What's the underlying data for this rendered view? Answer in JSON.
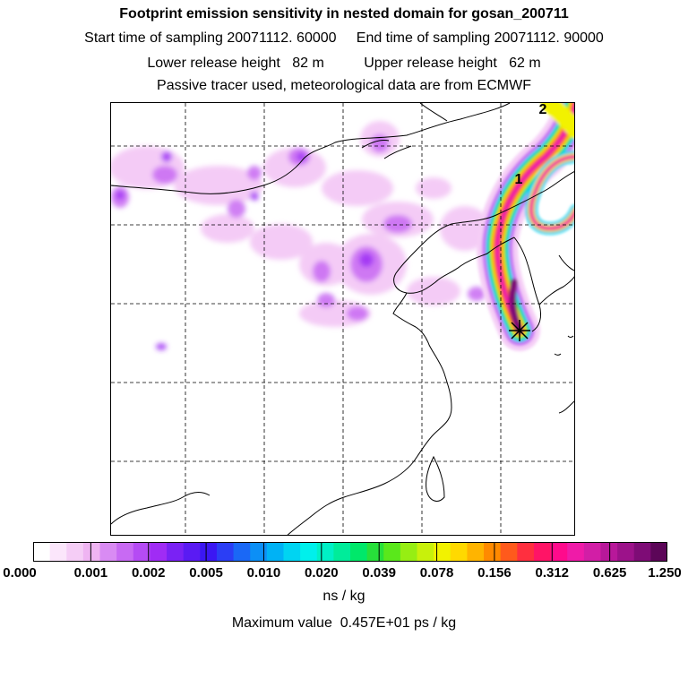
{
  "header": {
    "title": "Footprint emission sensitivity in nested domain for gosan_200711",
    "sampling": "Start time of sampling 20071112. 60000     End time of sampling 20071112. 90000",
    "release": "Lower release height   82 m          Upper release height   62 m",
    "tracer": "Passive tracer used, meteorological data are from ECMWF"
  },
  "map": {
    "trajectory_labels": [
      "1",
      "2"
    ],
    "release_marker": "receptor-star-icon"
  },
  "colorbar": {
    "tick_labels": [
      "0.000",
      "0.001",
      "0.002",
      "0.005",
      "0.010",
      "0.020",
      "0.039",
      "0.078",
      "0.156",
      "0.312",
      "0.625",
      "1.250"
    ],
    "colors": [
      "#ffffff",
      "#fbe6fb",
      "#f5cdf6",
      "#efb4f2",
      "#d98bf3",
      "#c86af3",
      "#b54bf4",
      "#a02cf5",
      "#7a22f4",
      "#5a1bf3",
      "#3b17f3",
      "#2b3ef5",
      "#1a68f6",
      "#0c8ff6",
      "#00b2f5",
      "#00d4f2",
      "#00f0ec",
      "#00f0c6",
      "#00ec9a",
      "#00e86a",
      "#27e03a",
      "#5ae81b",
      "#96ee13",
      "#c8f10b",
      "#f2f200",
      "#ffd900",
      "#ffb400",
      "#ff8a00",
      "#ff5a1c",
      "#ff2f3f",
      "#ff1466",
      "#ff0a8c",
      "#ef1ba8",
      "#d21ea6",
      "#b8189a",
      "#9c128a",
      "#7e0c76",
      "#5c0658"
    ]
  },
  "units": "ns / kg",
  "maximum": "Maximum value  0.457E+01 ps / kg"
}
